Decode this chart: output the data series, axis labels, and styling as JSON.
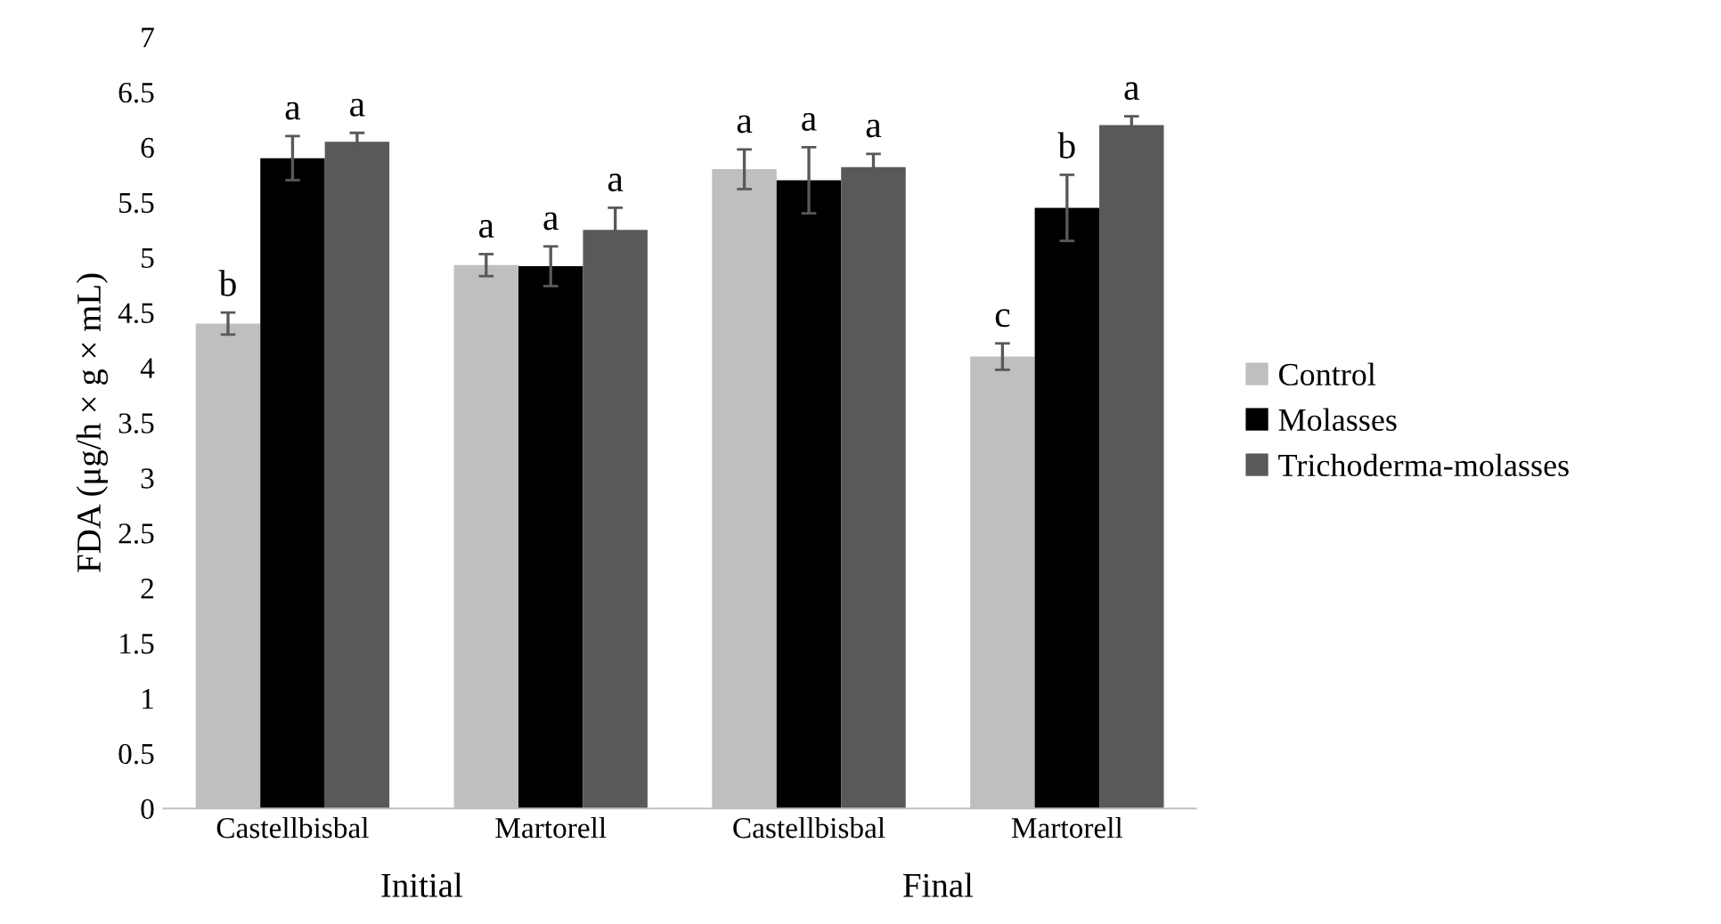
{
  "chart_data": {
    "type": "bar",
    "ylabel": "FDA (μg/h × g × mL)",
    "categories": [
      "Castellbisbal",
      "Martorell",
      "Castellbisbal",
      "Martorell"
    ],
    "series": [
      {
        "name": "Control",
        "color": "#bfbfbf",
        "values": [
          4.4,
          4.93,
          5.8,
          4.1
        ],
        "errors": [
          0.1,
          0.1,
          0.18,
          0.12
        ],
        "value_labels": [
          "b",
          "a",
          "a",
          "c"
        ]
      },
      {
        "name": "Molasses",
        "color": "#000000",
        "values": [
          5.9,
          4.92,
          5.7,
          5.45
        ],
        "errors": [
          0.2,
          0.18,
          0.3,
          0.3
        ],
        "value_labels": [
          "a",
          "a",
          "a",
          "b"
        ]
      },
      {
        "name": "Trichoderma-molasses",
        "color": "#595959",
        "values": [
          6.05,
          5.25,
          5.82,
          6.2
        ],
        "errors": [
          0.08,
          0.2,
          0.12,
          0.08
        ],
        "value_labels": [
          "a",
          "a",
          "a",
          "a"
        ]
      }
    ],
    "annotations": [
      "Initial",
      "Final"
    ],
    "ylim": [
      0,
      7
    ],
    "yticks": [
      0,
      0.5,
      1,
      1.5,
      2,
      2.5,
      3,
      3.5,
      4,
      4.5,
      5,
      5.5,
      6,
      6.5,
      7
    ],
    "grid": false,
    "legend": "right"
  }
}
